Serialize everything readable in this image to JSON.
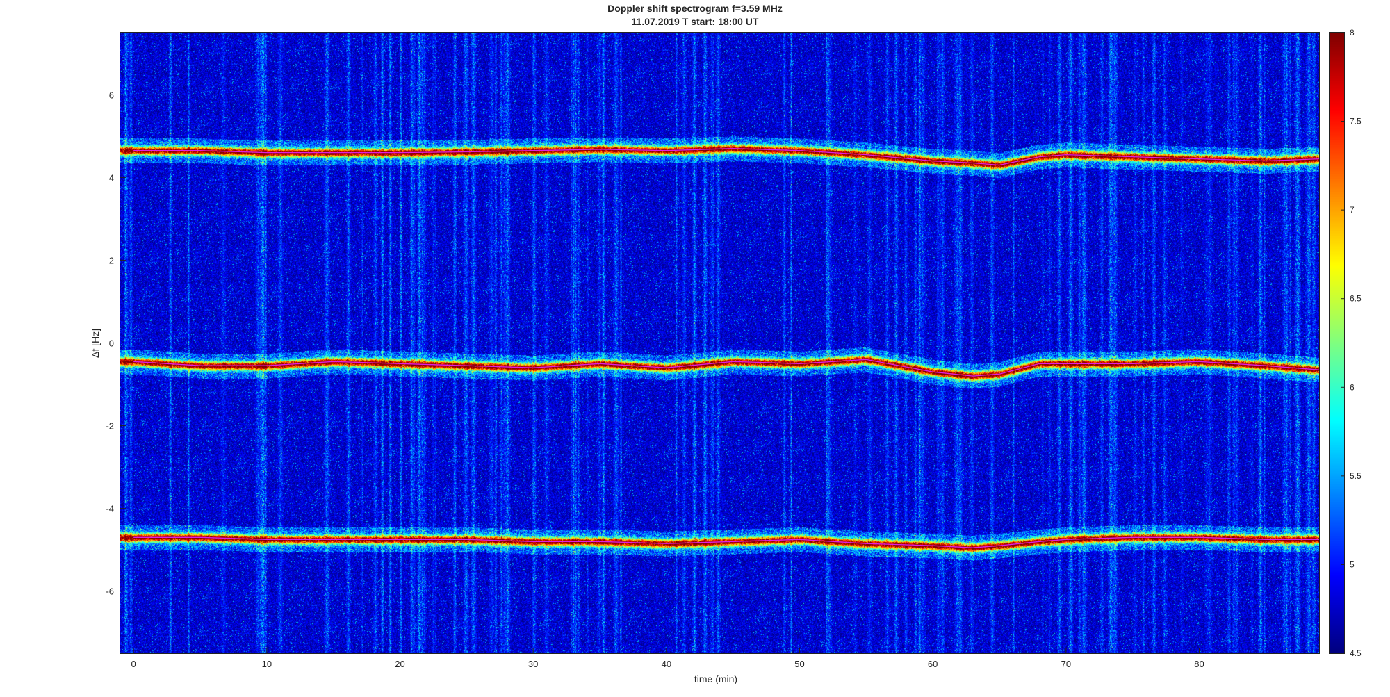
{
  "title_line1": "Doppler shift spectrogram f=3.59 MHz",
  "title_line2": "11.07.2019   T start: 18:00 UT",
  "chart_data": {
    "type": "heatmap",
    "title": "Doppler shift spectrogram f=3.59 MHz",
    "subtitle": "11.07.2019   T start: 18:00 UT",
    "xlabel": "time (min)",
    "ylabel": "Δf [Hz]",
    "xlim": [
      -1,
      89
    ],
    "ylim": [
      -7.5,
      7.5
    ],
    "x_ticks": [
      0,
      10,
      20,
      30,
      40,
      50,
      60,
      70,
      80
    ],
    "y_ticks": [
      -6,
      -4,
      -2,
      0,
      2,
      4,
      6
    ],
    "colormap": "jet",
    "clim": [
      4.5,
      8
    ],
    "colorbar_ticks": [
      4.5,
      5,
      5.5,
      6,
      6.5,
      7,
      7.5,
      8
    ],
    "colors": {
      "low": "#00008f",
      "high": "#800000",
      "trace_line": "#e020e0"
    },
    "series": [
      {
        "x": [
          0,
          5,
          10,
          15,
          20,
          25,
          30,
          35,
          40,
          45,
          50,
          55,
          60,
          63,
          65,
          68,
          70,
          75,
          80,
          85,
          89
        ],
        "y": [
          4.65,
          4.65,
          4.6,
          4.6,
          4.6,
          4.62,
          4.65,
          4.68,
          4.65,
          4.7,
          4.65,
          4.55,
          4.4,
          4.35,
          4.3,
          4.5,
          4.55,
          4.5,
          4.45,
          4.4,
          4.45
        ]
      },
      {
        "x": [
          0,
          5,
          10,
          15,
          20,
          25,
          30,
          35,
          40,
          45,
          50,
          55,
          60,
          63,
          65,
          68,
          70,
          75,
          80,
          85,
          89
        ],
        "y": [
          -0.45,
          -0.55,
          -0.55,
          -0.45,
          -0.5,
          -0.55,
          -0.6,
          -0.5,
          -0.6,
          -0.45,
          -0.5,
          -0.4,
          -0.7,
          -0.8,
          -0.75,
          -0.5,
          -0.5,
          -0.5,
          -0.45,
          -0.55,
          -0.65
        ]
      },
      {
        "x": [
          0,
          5,
          10,
          15,
          20,
          25,
          30,
          35,
          40,
          45,
          50,
          55,
          60,
          63,
          65,
          68,
          70,
          75,
          80,
          85,
          89
        ],
        "y": [
          -4.7,
          -4.7,
          -4.75,
          -4.75,
          -4.75,
          -4.75,
          -4.8,
          -4.8,
          -4.85,
          -4.8,
          -4.75,
          -4.85,
          -4.9,
          -4.95,
          -4.9,
          -4.8,
          -4.75,
          -4.7,
          -4.7,
          -4.75,
          -4.75
        ]
      }
    ]
  }
}
